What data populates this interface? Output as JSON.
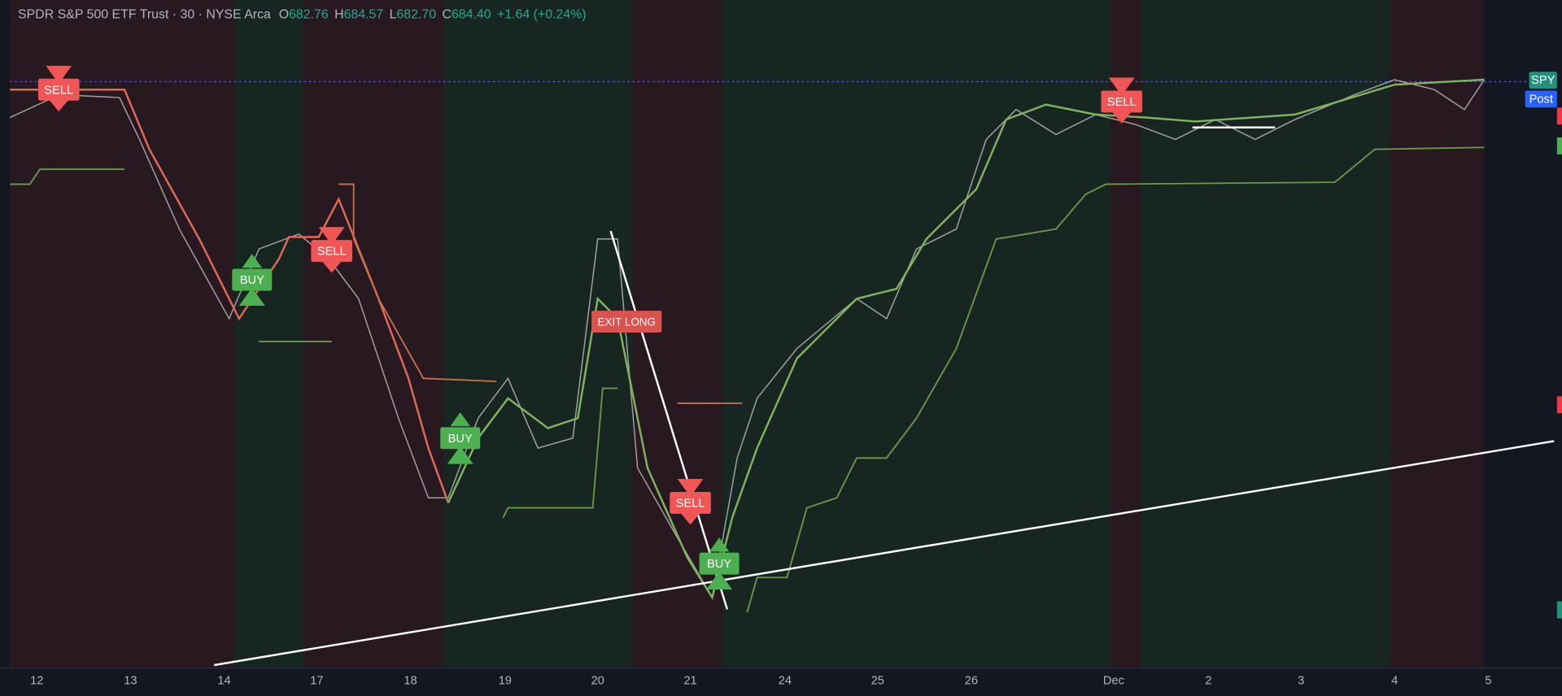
{
  "header": {
    "title": "SPDR S&P 500 ETF Trust · 30 · NYSE Arca",
    "open_label": "O",
    "open": "682.76",
    "high_label": "H",
    "high": "684.57",
    "low_label": "L",
    "low": "682.70",
    "close_label": "C",
    "close": "684.40",
    "change": "+1.64 (+0.24%)"
  },
  "x_axis": {
    "labels": [
      "12",
      "13",
      "14",
      "17",
      "18",
      "19",
      "20",
      "21",
      "24",
      "25",
      "26",
      "Dec",
      "2",
      "3",
      "4",
      "5"
    ]
  },
  "signals": [
    {
      "label": "SELL"
    },
    {
      "label": "BUY"
    },
    {
      "label": "SELL"
    },
    {
      "label": "BUY"
    },
    {
      "label": "EXIT LONG"
    },
    {
      "label": "SELL"
    },
    {
      "label": "BUY"
    },
    {
      "label": "SELL"
    }
  ],
  "price_scale": {
    "ticker": "SPY",
    "session": "Post"
  }
}
